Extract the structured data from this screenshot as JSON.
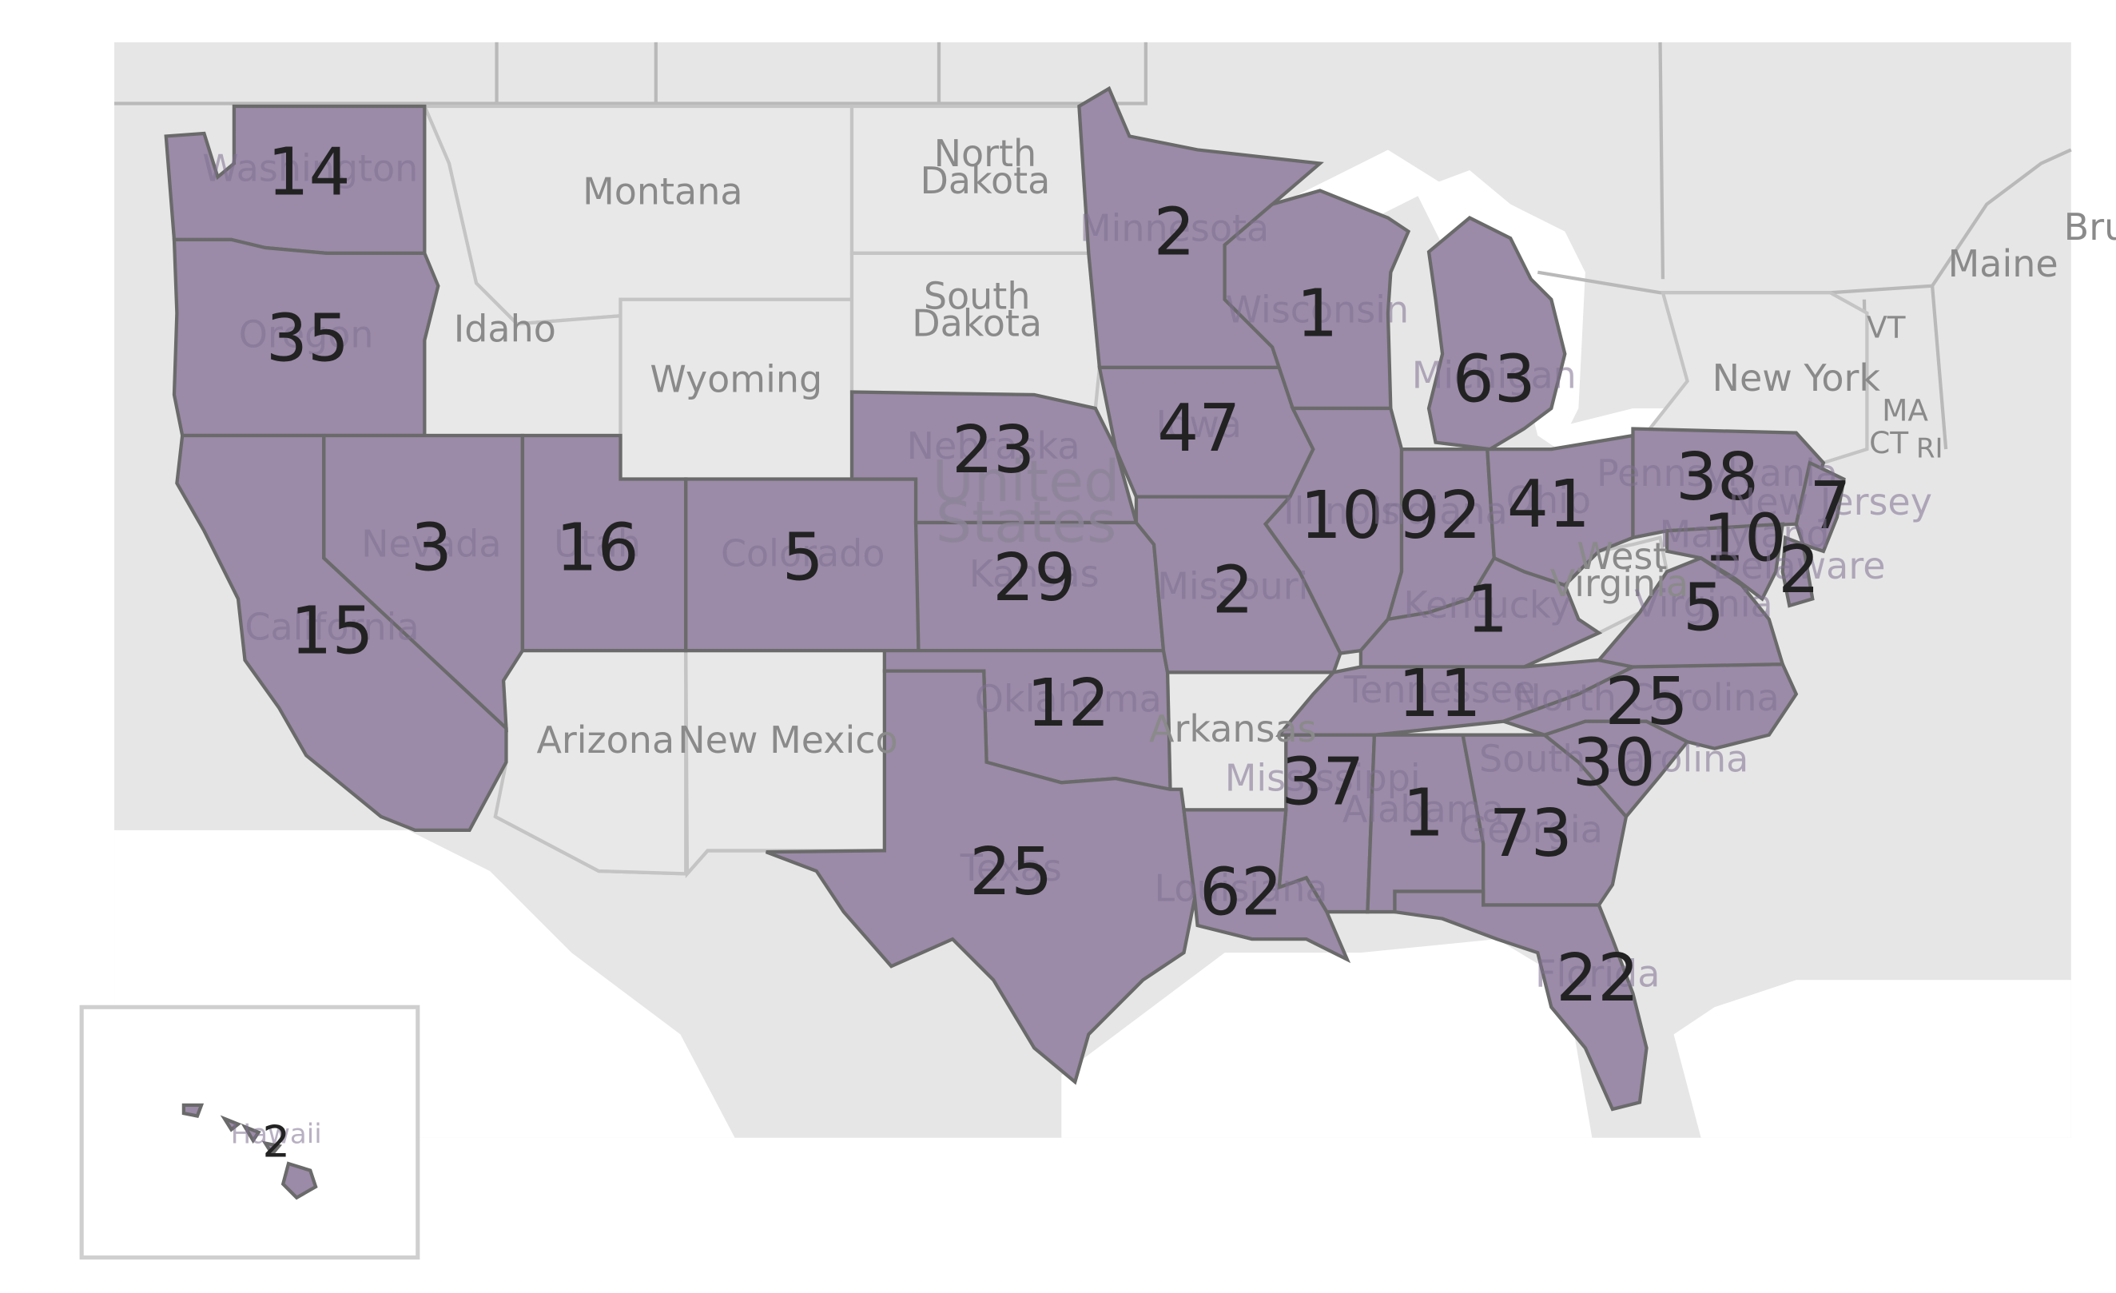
{
  "map": {
    "country_label_line1": "United",
    "country_label_line2": "States",
    "fill_color": "#9b8aa8",
    "base_color": "#e6e6e6",
    "plain_state_color": "#e8e8e8"
  },
  "states": [
    {
      "key": "wa",
      "name": "Washington",
      "value": "14"
    },
    {
      "key": "or",
      "name": "Oregon",
      "value": "35"
    },
    {
      "key": "ca",
      "name": "California",
      "value": "15"
    },
    {
      "key": "nv",
      "name": "Nevada",
      "value": "3"
    },
    {
      "key": "ut",
      "name": "Utah",
      "value": "16"
    },
    {
      "key": "co",
      "name": "Colorado",
      "value": "5"
    },
    {
      "key": "ne",
      "name": "Nebraska",
      "value": "23"
    },
    {
      "key": "ks",
      "name": "Kansas",
      "value": "29"
    },
    {
      "key": "ok",
      "name": "Oklahoma",
      "value": "12"
    },
    {
      "key": "tx",
      "name": "Texas",
      "value": "25"
    },
    {
      "key": "mn",
      "name": "Minnesota",
      "value": "2"
    },
    {
      "key": "ia",
      "name": "Iowa",
      "value": "47"
    },
    {
      "key": "mo",
      "name": "Missouri",
      "value": "2"
    },
    {
      "key": "wi",
      "name": "Wisconsin",
      "value": "1"
    },
    {
      "key": "il",
      "name": "Illinois",
      "value": "10"
    },
    {
      "key": "mi",
      "name": "Michigan",
      "value": "63"
    },
    {
      "key": "in",
      "name": "Indiana",
      "value": "92"
    },
    {
      "key": "oh",
      "name": "Ohio",
      "value": "41"
    },
    {
      "key": "ky",
      "name": "Kentucky",
      "value": "1"
    },
    {
      "key": "tn",
      "name": "Tennessee",
      "value": "11"
    },
    {
      "key": "ms",
      "name": "Mississippi",
      "value": "37"
    },
    {
      "key": "al",
      "name": "Alabama",
      "value": "1"
    },
    {
      "key": "ga",
      "name": "Georgia",
      "value": "73"
    },
    {
      "key": "la",
      "name": "Louisiana",
      "value": "62"
    },
    {
      "key": "fl",
      "name": "Florida",
      "value": "22"
    },
    {
      "key": "sc",
      "name": "South Carolina",
      "value": "30"
    },
    {
      "key": "nc",
      "name": "North Carolina",
      "value": "25"
    },
    {
      "key": "va",
      "name": "Virginia",
      "value": "5"
    },
    {
      "key": "pa",
      "name": "Pennsylvania",
      "value": "38"
    },
    {
      "key": "nj",
      "name": "New Jersey",
      "value": "7"
    },
    {
      "key": "md",
      "name": "Maryland",
      "value": "10"
    },
    {
      "key": "de",
      "name": "Delaware",
      "value": "2"
    },
    {
      "key": "hi",
      "name": "Hawaii",
      "value": "2"
    }
  ],
  "unfilled_states": [
    {
      "key": "mt",
      "name": "Montana"
    },
    {
      "key": "id",
      "name": "Idaho"
    },
    {
      "key": "wy",
      "name": "Wyoming"
    },
    {
      "key": "nd_1",
      "name": "North"
    },
    {
      "key": "nd_2",
      "name": "Dakota"
    },
    {
      "key": "sd_1",
      "name": "South"
    },
    {
      "key": "sd_2",
      "name": "Dakota"
    },
    {
      "key": "az",
      "name": "Arizona"
    },
    {
      "key": "nm",
      "name": "New Mexico"
    },
    {
      "key": "ar",
      "name": "Arkansas"
    },
    {
      "key": "wv_1",
      "name": "West"
    },
    {
      "key": "wv_2",
      "name": "Virginia"
    },
    {
      "key": "ny",
      "name": "New York"
    },
    {
      "key": "me",
      "name": "Maine"
    },
    {
      "key": "vt",
      "name": "VT"
    },
    {
      "key": "ma",
      "name": "MA"
    },
    {
      "key": "ct",
      "name": "CT"
    },
    {
      "key": "ri",
      "name": "RI"
    },
    {
      "key": "bru",
      "name": "Bru"
    }
  ]
}
